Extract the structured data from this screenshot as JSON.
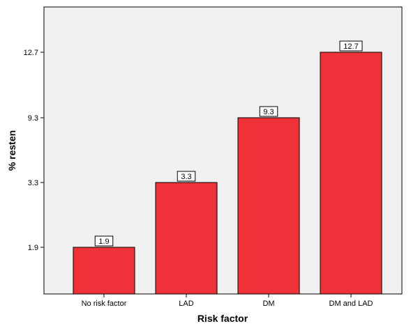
{
  "chart_data": {
    "type": "bar",
    "categories": [
      "No risk factor",
      "LAD",
      "DM",
      "DM and LAD"
    ],
    "values": [
      1.9,
      3.3,
      9.3,
      12.7
    ],
    "data_labels": [
      "1.9",
      "3.3",
      "9.3",
      "12.7"
    ],
    "xlabel": "Risk factor",
    "ylabel": "% resten",
    "ytick_labels": [
      "1.9",
      "3.3",
      "9.3",
      "12.7"
    ],
    "y_axis_scale": "categorical-spaced ticks (bars drawn at tick positions)",
    "grid": false,
    "legend": "none",
    "plot_background": "#f0f0f0",
    "colors": {
      "bar": "#ee3238",
      "bar_edge": "#000000",
      "axis": "#000000"
    }
  }
}
